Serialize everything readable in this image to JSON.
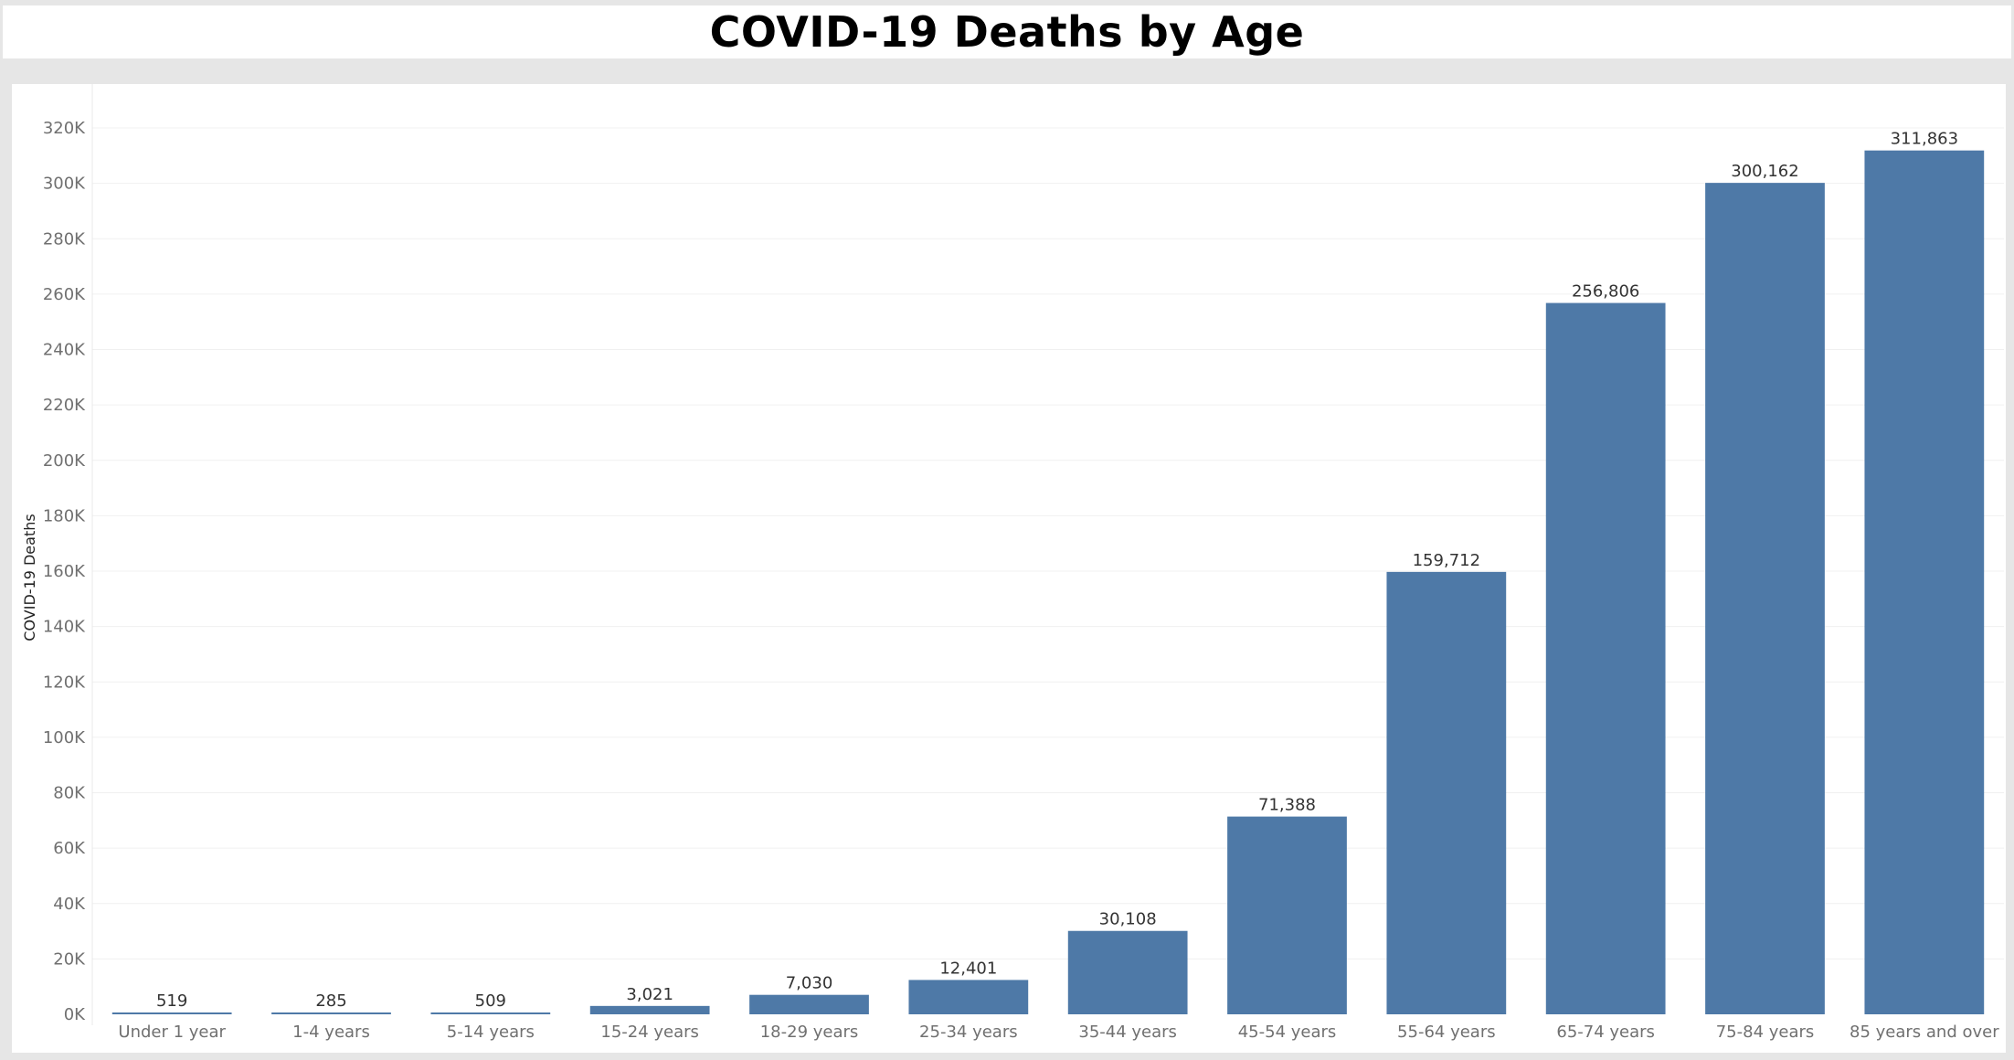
{
  "chart_data": {
    "type": "bar",
    "title": "COVID-19 Deaths by Age",
    "xlabel": "",
    "ylabel": "COVID-19 Deaths",
    "ylim": [
      0,
      320000
    ],
    "yticks": [
      "0K",
      "20K",
      "40K",
      "60K",
      "80K",
      "100K",
      "120K",
      "140K",
      "160K",
      "180K",
      "200K",
      "220K",
      "240K",
      "260K",
      "280K",
      "300K",
      "320K"
    ],
    "categories": [
      "Under 1 year",
      "1-4 years",
      "5-14 years",
      "15-24 years",
      "18-29 years",
      "25-34 years",
      "35-44 years",
      "45-54 years",
      "55-64 years",
      "65-74 years",
      "75-84 years",
      "85 years and over"
    ],
    "values": [
      519,
      285,
      509,
      3021,
      7030,
      12401,
      30108,
      71388,
      159712,
      256806,
      300162,
      311863
    ],
    "data_labels": [
      "519",
      "285",
      "509",
      "3,021",
      "7,030",
      "12,401",
      "30,108",
      "71,388",
      "159,712",
      "256,806",
      "300,162",
      "311,863"
    ],
    "bar_color": "#4e79a7",
    "grid": true,
    "legend": "none"
  }
}
